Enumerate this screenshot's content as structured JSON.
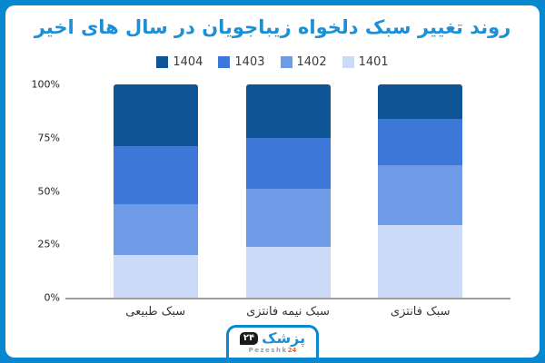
{
  "frame": {
    "border_color": "#0a88cf",
    "card_background": "#ffffff"
  },
  "title": "روند تغییر سبک دلخواه زیباجویان در سال های اخیر",
  "title_color": "#1d8fd6",
  "chart_data": {
    "type": "bar",
    "subtype": "stacked-100-percent",
    "title": "روند تغییر سبک دلخواه زیباجویان در سال های اخیر",
    "categories": [
      "سبک طبیعی",
      "سبک نیمه فانتزی",
      "سبک فانتزی"
    ],
    "series": [
      {
        "name": "1401",
        "color": "#cbdaf6",
        "values": [
          20,
          24,
          34
        ]
      },
      {
        "name": "1402",
        "color": "#6e9ae6",
        "values": [
          24,
          27,
          28
        ]
      },
      {
        "name": "1403",
        "color": "#3d78d8",
        "values": [
          27,
          24,
          22
        ]
      },
      {
        "name": "1404",
        "color": "#0f5494",
        "values": [
          29,
          25,
          16
        ]
      }
    ],
    "stack_order": "bottom-to-top: 1401, 1402, 1403, 1404",
    "y_ticks": [
      "100%",
      "75%",
      "50%",
      "25%",
      "0%"
    ],
    "ylim": [
      0,
      100
    ],
    "xlabel": "",
    "ylabel": "",
    "grid": false,
    "legend_position": "top",
    "legend_order": [
      "1404",
      "1403",
      "1402",
      "1401"
    ],
    "axis_line_color": "#9e9e9e"
  },
  "logo": {
    "brand_fa": "پزشک",
    "badge": "۲۴",
    "brand_en": "Pezeshk",
    "brand_en_num": "24"
  }
}
